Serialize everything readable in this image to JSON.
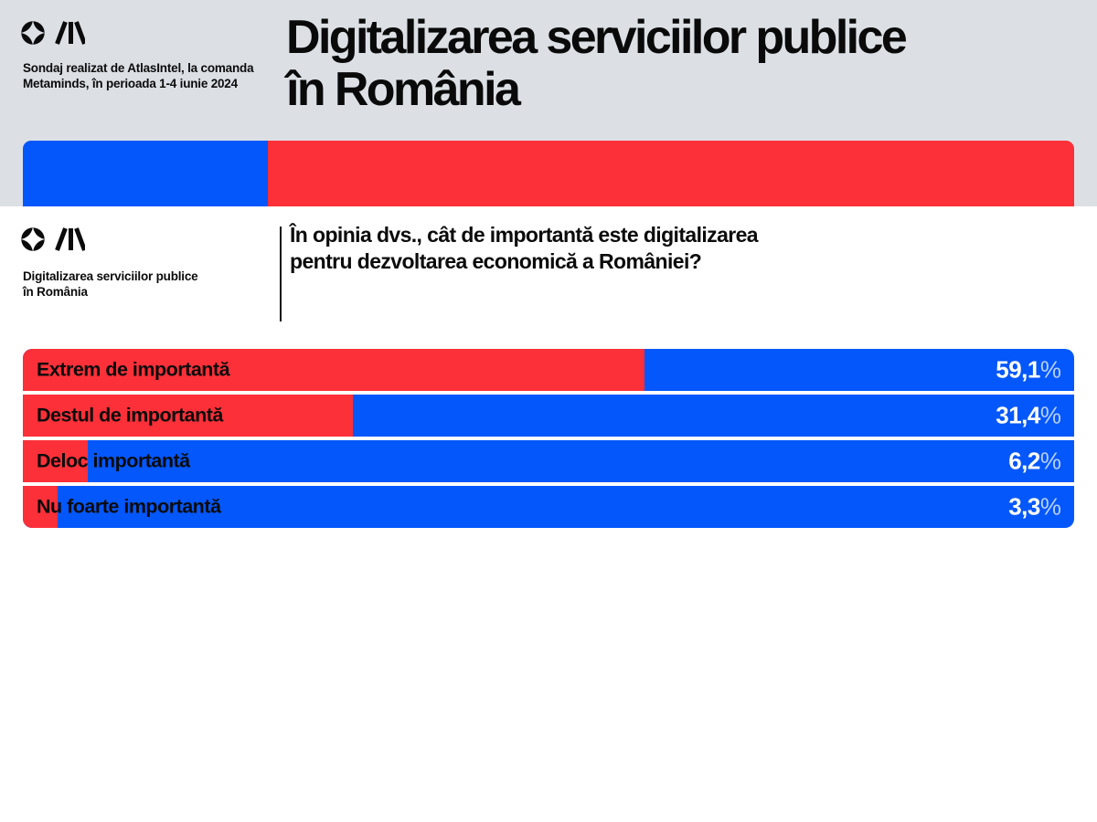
{
  "header": {
    "survey_note_line1": "Sondaj realizat de AtlasIntel, la comanda",
    "survey_note_line2": "Metaminds, în perioada 1-4 iunie 2024",
    "title_line1": "Digitalizarea serviciilor publice",
    "title_line2": "în România"
  },
  "section": {
    "brand_line1": "Digitalizarea serviciilor publice",
    "brand_line2": "în România",
    "question_line1": "În opinia dvs., cât de importantă este digitalizarea",
    "question_line2": "pentru dezvoltarea economică a României?"
  },
  "banner": {
    "blue_percent": 23.3,
    "red_percent": 76.7
  },
  "colors": {
    "red": "#fc3038",
    "blue": "#0357fb",
    "header_background": "#dce0e5",
    "text": "#0b0b0c",
    "value_text": "#ffffff"
  },
  "chart_data": {
    "type": "bar",
    "orientation": "horizontal",
    "title": "Digitalizarea serviciilor publice în România",
    "question": "În opinia dvs., cât de importantă este digitalizarea pentru dezvoltarea economică a României?",
    "categories": [
      "Extrem de importantă",
      "Destul de importantă",
      "Deloc importantă",
      "Nu foarte importantă"
    ],
    "values": [
      59.1,
      31.4,
      6.2,
      3.3
    ],
    "value_labels": [
      "59,1",
      "31,4",
      "6,2",
      "3,3"
    ],
    "percent_sign": "%",
    "xlim": [
      0,
      100
    ],
    "grid": false,
    "legend": false,
    "value_color": "#fc3038",
    "remainder_color": "#0357fb"
  }
}
